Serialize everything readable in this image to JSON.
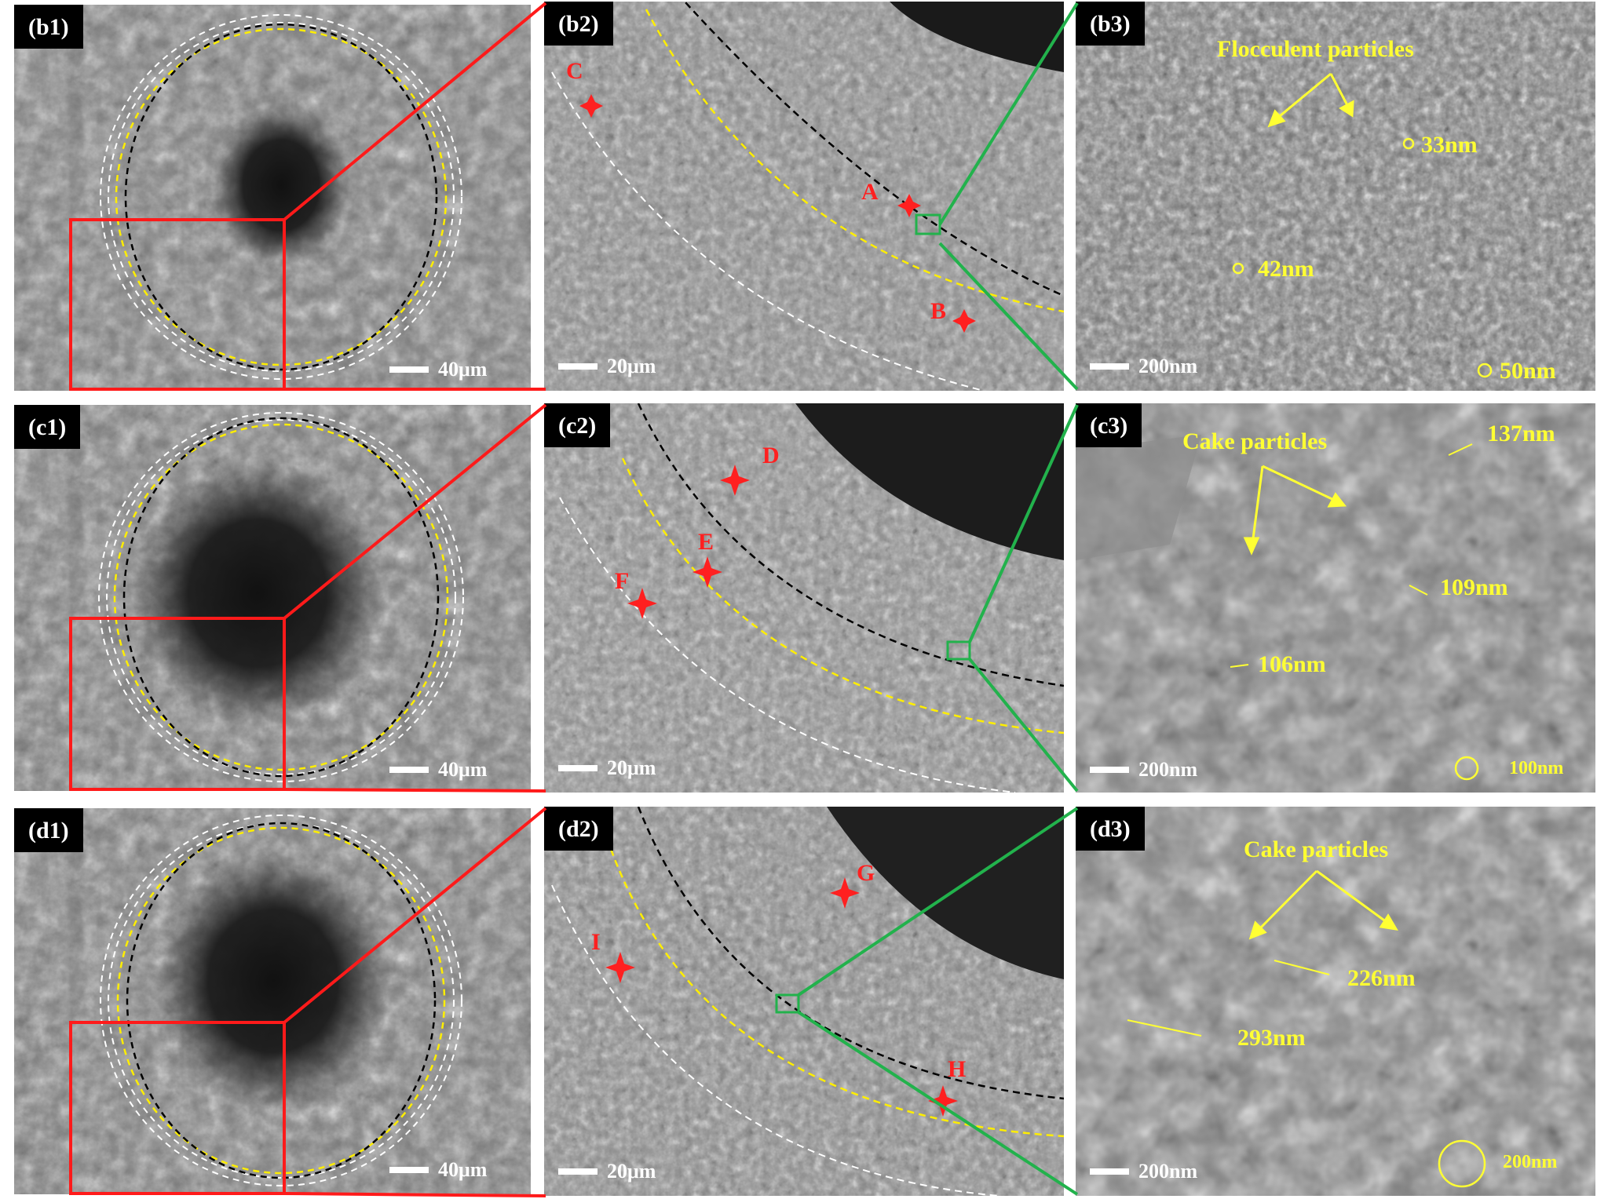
{
  "colors": {
    "red_zoom": "#ff1a1a",
    "green_zoom": "#22b24c",
    "annotation_yellow": "#ffff33",
    "marker_red": "#ff2020"
  },
  "rows": [
    {
      "p1": {
        "label": "(b1)",
        "scale": "40μm"
      },
      "p2": {
        "label": "(b2)",
        "scale": "20μm",
        "markers": [
          "C",
          "A",
          "B"
        ]
      },
      "p3": {
        "label": "(b3)",
        "scale": "200nm",
        "title": "Flocculent particles",
        "sizes": [
          "33nm",
          "42nm"
        ],
        "ref": "50nm"
      }
    },
    {
      "p1": {
        "label": "(c1)",
        "scale": "40μm"
      },
      "p2": {
        "label": "(c2)",
        "scale": "20μm",
        "markers": [
          "D",
          "E",
          "F"
        ]
      },
      "p3": {
        "label": "(c3)",
        "scale": "200nm",
        "title": "Cake particles",
        "sizes": [
          "137nm",
          "109nm",
          "106nm"
        ],
        "ref": "100nm"
      }
    },
    {
      "p1": {
        "label": "(d1)",
        "scale": "40μm"
      },
      "p2": {
        "label": "(d2)",
        "scale": "20μm",
        "markers": [
          "G",
          "I",
          "H"
        ]
      },
      "p3": {
        "label": "(d3)",
        "scale": "200nm",
        "title": "Cake particles",
        "sizes": [
          "226nm",
          "293nm"
        ],
        "ref": "200nm"
      }
    }
  ]
}
